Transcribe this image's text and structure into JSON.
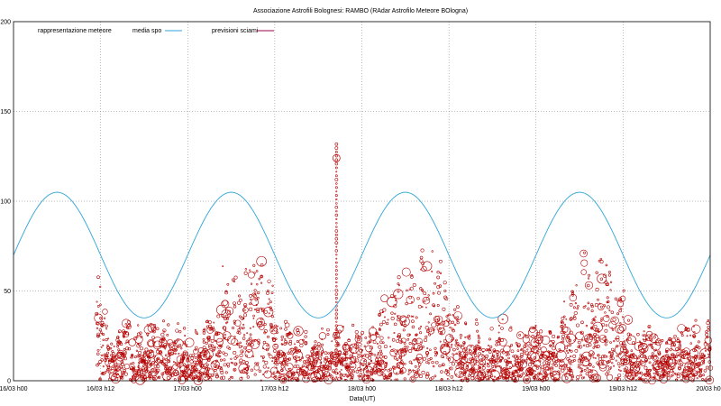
{
  "chart_data": {
    "type": "scatter",
    "title": "Associazione Astrofili Bolognesi:      RAMBO (RAdar Astrofilo Meteore BOlogna)",
    "xlabel": "Data(UT)",
    "ylabel": "",
    "ylim": [
      0,
      200
    ],
    "yticks": [
      "0",
      "50",
      "100",
      "150",
      "200"
    ],
    "xlim_hours": [
      0,
      96
    ],
    "xticks": [
      "16/03 h00",
      "16/03 h12",
      "17/03 h00",
      "17/03 h12",
      "18/03 h00",
      "18/03 h12",
      "19/03 h00",
      "19/03 h12",
      "20/03 h00"
    ],
    "grid": true,
    "legend_position": "top-left",
    "series": [
      {
        "name": "rappresentazione meteore",
        "style": "points",
        "color": "#b30000"
      },
      {
        "name": "media spo",
        "style": "line",
        "color": "#2fa5d6"
      },
      {
        "name": "previsioni sciami",
        "style": "line",
        "color": "#a0004c"
      }
    ],
    "media_spo": {
      "x": [
        0,
        6,
        12,
        18,
        24,
        30,
        36,
        42,
        48,
        54,
        60,
        66,
        72,
        78,
        84,
        90,
        96
      ],
      "y": [
        70,
        105,
        70,
        35,
        70,
        105,
        70,
        35,
        70,
        105,
        70,
        35,
        70,
        105,
        70,
        35,
        70
      ]
    },
    "meteor_data_range_hours": [
      11.5,
      96
    ]
  }
}
